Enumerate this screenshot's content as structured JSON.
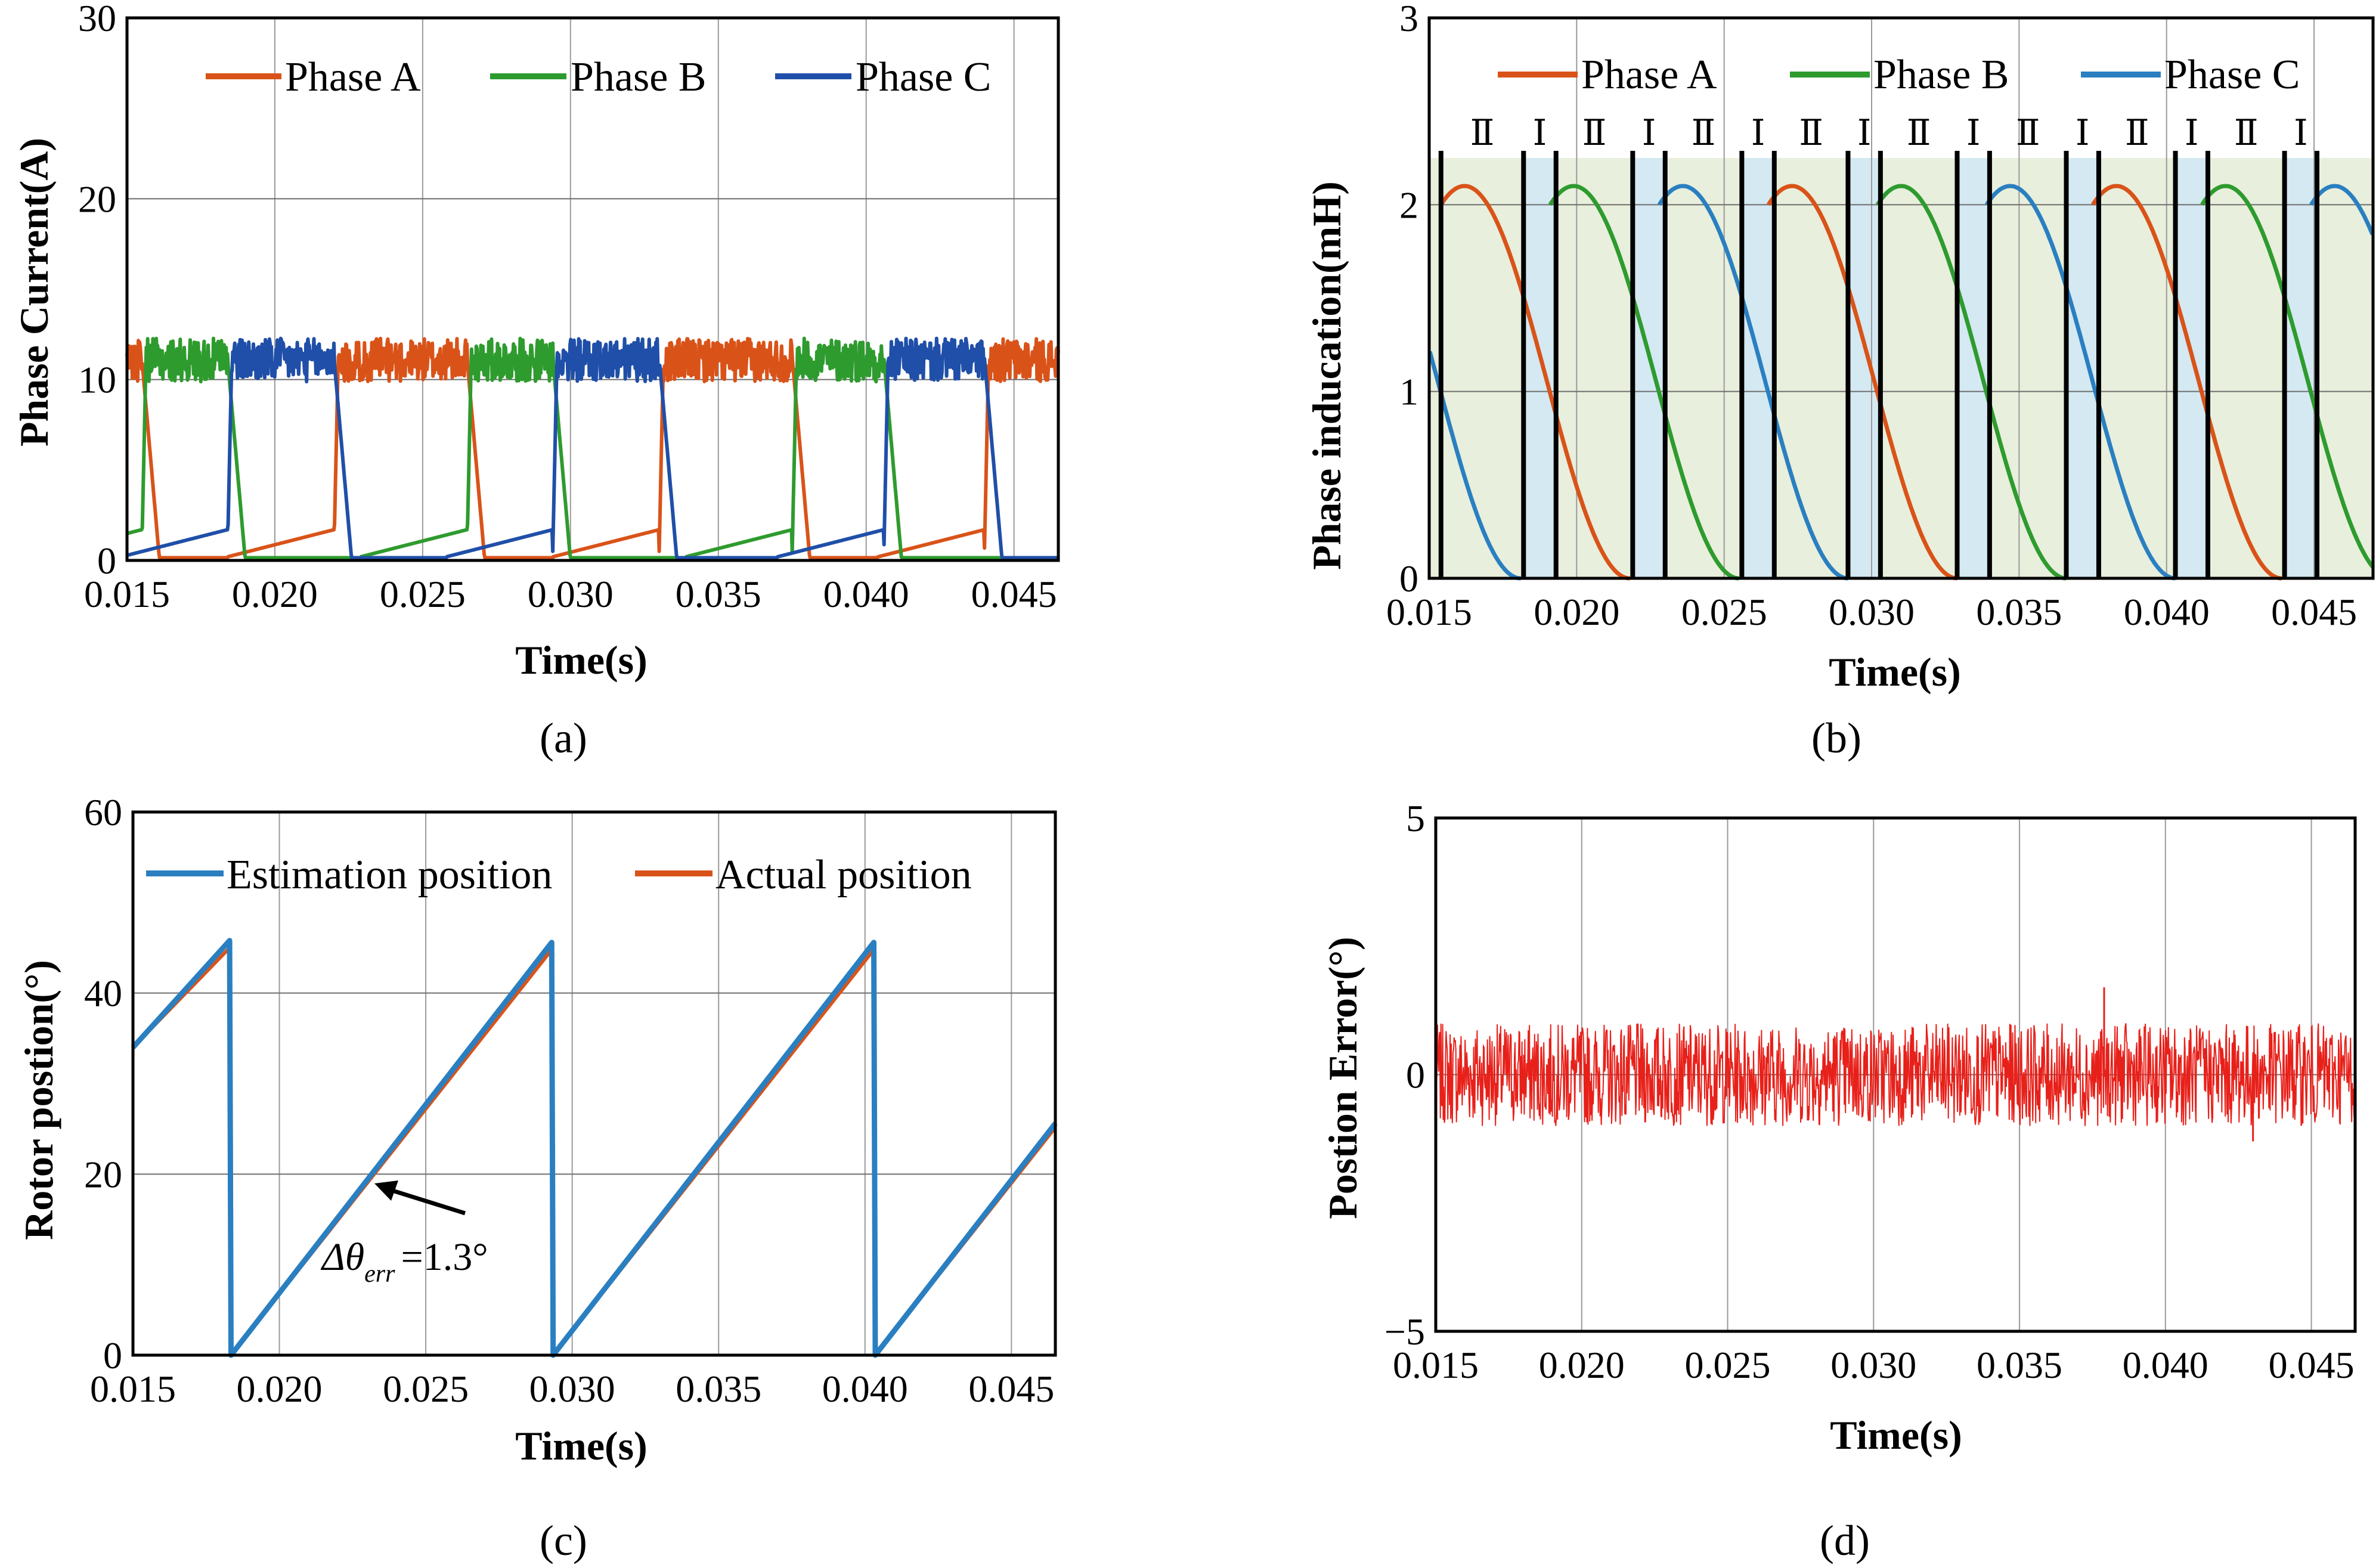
{
  "chart_data": [
    {
      "panel": "(a)",
      "type": "line",
      "xlabel": "Time(s)",
      "ylabel": "Phase Current(A)",
      "xlim": [
        0.015,
        0.0465
      ],
      "ylim": [
        0,
        30
      ],
      "xticks": [
        "0.015",
        "0.020",
        "0.025",
        "0.030",
        "0.035",
        "0.040",
        "0.045"
      ],
      "yticks": [
        "0",
        "10",
        "20",
        "30"
      ],
      "grid": true,
      "legend_position": "top",
      "series": [
        {
          "name": "Phase A",
          "color": "#d95319",
          "on_intervals": [
            [
              0.0148,
              0.0155
            ],
            [
              0.022,
              0.0265
            ],
            [
              0.033,
              0.0375
            ],
            [
              0.044,
              0.0465
            ]
          ],
          "on_level": 11.2,
          "tail_ripple": 1.5
        },
        {
          "name": "Phase B",
          "color": "#2e9b2e",
          "on_intervals": [
            [
              0.0155,
              0.0184
            ],
            [
              0.0265,
              0.0294
            ],
            [
              0.0375,
              0.0406
            ]
          ],
          "on_level": 11.2,
          "tail_ripple": 1.5
        },
        {
          "name": "Phase C",
          "color": "#1f4fa8",
          "on_intervals": [
            [
              0.0184,
              0.022
            ],
            [
              0.0294,
              0.033
            ],
            [
              0.0406,
              0.044
            ]
          ],
          "on_level": 11.2,
          "tail_ripple": 1.5
        }
      ]
    },
    {
      "panel": "(b)",
      "type": "line",
      "xlabel": "Time(s)",
      "ylabel": "Phase  inducation(mH)",
      "xlim": [
        0.015,
        0.047
      ],
      "ylim": [
        0,
        3
      ],
      "xticks": [
        "0.015",
        "0.020",
        "0.025",
        "0.030",
        "0.035",
        "0.040",
        "0.045"
      ],
      "yticks": [
        "0",
        "1",
        "2",
        "3"
      ],
      "grid": true,
      "legend_position": "top",
      "zone_labels": [
        "Ⅱ",
        "Ⅰ"
      ],
      "zone_colors": {
        "region_II": "#e8efdc",
        "region_I": "#d4e9f2"
      },
      "series": [
        {
          "name": "Phase A",
          "color": "#d95319",
          "peak_times": [
            0.0162,
            0.0273,
            0.0383
          ],
          "max": 2.1
        },
        {
          "name": "Phase B",
          "color": "#2e9b2e",
          "peak_times": [
            0.0199,
            0.031,
            0.042
          ],
          "max": 2.1
        },
        {
          "name": "Phase C",
          "color": "#2a7fc1",
          "peak_times": [
            0.0125,
            0.0236,
            0.0347,
            0.0457
          ],
          "max": 2.1
        }
      ]
    },
    {
      "panel": "(c)",
      "type": "line",
      "xlabel": "Time(s)",
      "ylabel": "Rotor postion(°)",
      "xlim": [
        0.015,
        0.0465
      ],
      "ylim": [
        0,
        60
      ],
      "xticks": [
        "0.015",
        "0.020",
        "0.025",
        "0.030",
        "0.035",
        "0.040",
        "0.045"
      ],
      "yticks": [
        "0",
        "20",
        "40",
        "60"
      ],
      "grid": true,
      "legend_position": "top",
      "annotation": {
        "symbol": "Δθ",
        "subscript": "err",
        "value": "=1.3°",
        "at_x": 0.0227,
        "at_y": 20
      },
      "series": [
        {
          "name": "Estimation position",
          "color": "#2a7fc1",
          "resets": [
            0.0183,
            0.0293,
            0.0403
          ],
          "max": 45.8,
          "x_start": 0.015,
          "y_start": 34
        },
        {
          "name": "Actual position",
          "color": "#d95319",
          "resets": [
            0.0183,
            0.0293,
            0.0403
          ],
          "max": 45,
          "x_start": 0.015,
          "y_start": 34
        }
      ]
    },
    {
      "panel": "(d)",
      "type": "line",
      "xlabel": "Time(s)",
      "ylabel": "Postion Error(°)",
      "xlim": [
        0.015,
        0.0465
      ],
      "ylim": [
        -5,
        5
      ],
      "xticks": [
        "0.015",
        "0.020",
        "0.025",
        "0.030",
        "0.035",
        "0.040",
        "0.045"
      ],
      "yticks": [
        "−5",
        "0",
        "5"
      ],
      "grid": true,
      "series": [
        {
          "name": "",
          "color": "#e8201a",
          "mean": 0,
          "amplitude": 1.0,
          "spikes": [
            {
              "x": 0.0379,
              "y": 1.7
            },
            {
              "x": 0.043,
              "y": -1.3
            }
          ]
        }
      ]
    }
  ]
}
